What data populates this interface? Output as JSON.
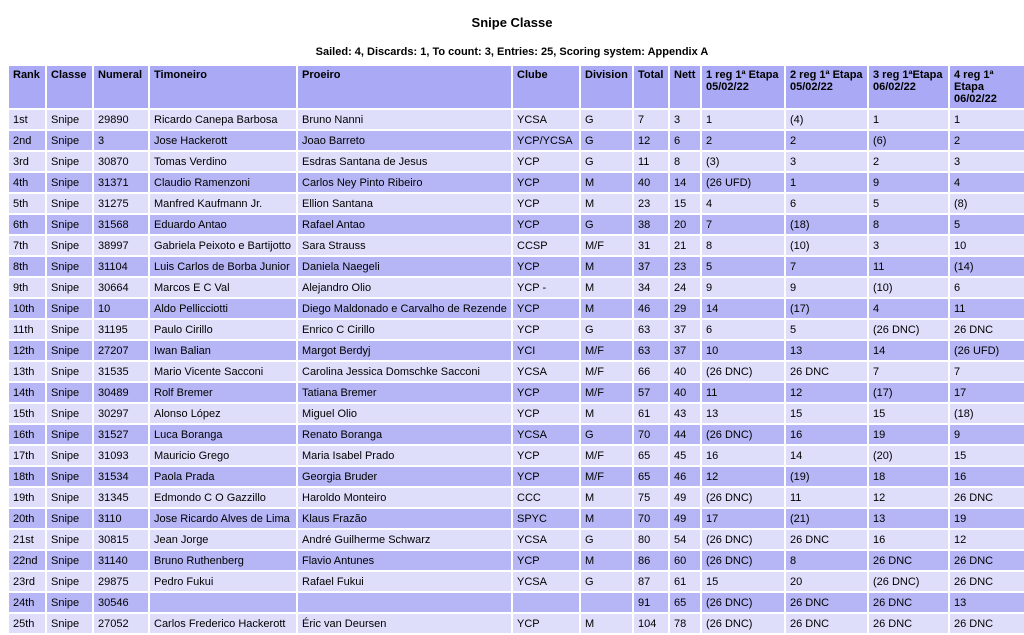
{
  "title": "Snipe Classe",
  "summary": "Sailed: 4, Discards: 1, To count: 3, Entries: 25, Scoring system: Appendix A",
  "colors": {
    "header": "#a9a9f5",
    "row_light": "#dedefb",
    "row_dark": "#b6b6f6"
  },
  "columns": [
    "Rank",
    "Classe",
    "Numeral",
    "Timoneiro",
    "Proeiro",
    "Clube",
    "Division",
    "Total",
    "Nett",
    "1 reg 1ª Etapa 05/02/22",
    "2 reg 1ª Etapa 05/02/22",
    "3 reg 1ªEtapa 06/02/22",
    "4 reg 1ª Etapa 06/02/22"
  ],
  "rows": [
    [
      "1st",
      "Snipe",
      "29890",
      "Ricardo Canepa Barbosa",
      "Bruno Nanni",
      "YCSA",
      "G",
      "7",
      "3",
      "1",
      "(4)",
      "1",
      "1"
    ],
    [
      "2nd",
      "Snipe",
      "3",
      "Jose Hackerott",
      "Joao Barreto",
      "YCP/YCSA",
      "G",
      "12",
      "6",
      "2",
      "2",
      "(6)",
      "2"
    ],
    [
      "3rd",
      "Snipe",
      "30870",
      "Tomas Verdino",
      "Esdras Santana de Jesus",
      "YCP",
      "G",
      "11",
      "8",
      "(3)",
      "3",
      "2",
      "3"
    ],
    [
      "4th",
      "Snipe",
      "31371",
      "Claudio Ramenzoni",
      "Carlos Ney Pinto Ribeiro",
      "YCP",
      "M",
      "40",
      "14",
      "(26 UFD)",
      "1",
      "9",
      "4"
    ],
    [
      "5th",
      "Snipe",
      "31275",
      "Manfred Kaufmann Jr.",
      "Ellion Santana",
      "YCP",
      "M",
      "23",
      "15",
      "4",
      "6",
      "5",
      "(8)"
    ],
    [
      "6th",
      "Snipe",
      "31568",
      "Eduardo Antao",
      "Rafael Antao",
      "YCP",
      "G",
      "38",
      "20",
      "7",
      "(18)",
      "8",
      "5"
    ],
    [
      "7th",
      "Snipe",
      "38997",
      "Gabriela Peixoto e Bartijotto",
      "Sara Strauss",
      "CCSP",
      "M/F",
      "31",
      "21",
      "8",
      "(10)",
      "3",
      "10"
    ],
    [
      "8th",
      "Snipe",
      "31104",
      "Luis Carlos de Borba Junior",
      "Daniela Naegeli",
      "YCP",
      "M",
      "37",
      "23",
      "5",
      "7",
      "11",
      "(14)"
    ],
    [
      "9th",
      "Snipe",
      "30664",
      "Marcos E C Val",
      "Alejandro Olio",
      "YCP -",
      "M",
      "34",
      "24",
      "9",
      "9",
      "(10)",
      "6"
    ],
    [
      "10th",
      "Snipe",
      "10",
      "Aldo Pellicciotti",
      "Diego Maldonado e Carvalho de Rezende",
      "YCP",
      "M",
      "46",
      "29",
      "14",
      "(17)",
      "4",
      "11"
    ],
    [
      "11th",
      "Snipe",
      "31195",
      "Paulo Cirillo",
      "Enrico C Cirillo",
      "YCP",
      "G",
      "63",
      "37",
      "6",
      "5",
      "(26 DNC)",
      "26 DNC"
    ],
    [
      "12th",
      "Snipe",
      "27207",
      "Iwan Balian",
      "Margot Berdyj",
      "YCI",
      "M/F",
      "63",
      "37",
      "10",
      "13",
      "14",
      "(26 UFD)"
    ],
    [
      "13th",
      "Snipe",
      "31535",
      "Mario Vicente Sacconi",
      "Carolina Jessica Domschke Sacconi",
      "YCSA",
      "M/F",
      "66",
      "40",
      "(26 DNC)",
      "26 DNC",
      "7",
      "7"
    ],
    [
      "14th",
      "Snipe",
      "30489",
      "Rolf Bremer",
      "Tatiana Bremer",
      "YCP",
      "M/F",
      "57",
      "40",
      "11",
      "12",
      "(17)",
      "17"
    ],
    [
      "15th",
      "Snipe",
      "30297",
      "Alonso López",
      "Miguel Olio",
      "YCP",
      "M",
      "61",
      "43",
      "13",
      "15",
      "15",
      "(18)"
    ],
    [
      "16th",
      "Snipe",
      "31527",
      "Luca Boranga",
      "Renato Boranga",
      "YCSA",
      "G",
      "70",
      "44",
      "(26 DNC)",
      "16",
      "19",
      "9"
    ],
    [
      "17th",
      "Snipe",
      "31093",
      "Mauricio Grego",
      "Maria Isabel Prado",
      "YCP",
      "M/F",
      "65",
      "45",
      "16",
      "14",
      "(20)",
      "15"
    ],
    [
      "18th",
      "Snipe",
      "31534",
      "Paola Prada",
      "Georgia Bruder",
      "YCP",
      "M/F",
      "65",
      "46",
      "12",
      "(19)",
      "18",
      "16"
    ],
    [
      "19th",
      "Snipe",
      "31345",
      "Edmondo C O Gazzillo",
      "Haroldo Monteiro",
      "CCC",
      "M",
      "75",
      "49",
      "(26 DNC)",
      "11",
      "12",
      "26 DNC"
    ],
    [
      "20th",
      "Snipe",
      "3110",
      "Jose Ricardo Alves de Lima",
      "Klaus Frazão",
      "SPYC",
      "M",
      "70",
      "49",
      "17",
      "(21)",
      "13",
      "19"
    ],
    [
      "21st",
      "Snipe",
      "30815",
      "Jean Jorge",
      "André Guilherme Schwarz",
      "YCSA",
      "G",
      "80",
      "54",
      "(26 DNC)",
      "26 DNC",
      "16",
      "12"
    ],
    [
      "22nd",
      "Snipe",
      "31140",
      "Bruno Ruthenberg",
      "Flavio Antunes",
      "YCP",
      "M",
      "86",
      "60",
      "(26 DNC)",
      "8",
      "26 DNC",
      "26 DNC"
    ],
    [
      "23rd",
      "Snipe",
      "29875",
      "Pedro Fukui",
      "Rafael Fukui",
      "YCSA",
      "G",
      "87",
      "61",
      "15",
      "20",
      "(26 DNC)",
      "26 DNC"
    ],
    [
      "24th",
      "Snipe",
      "30546",
      "",
      "",
      "",
      "",
      "91",
      "65",
      "(26 DNC)",
      "26 DNC",
      "26 DNC",
      "13"
    ],
    [
      "25th",
      "Snipe",
      "27052",
      "Carlos Frederico Hackerott",
      "Éric van Deursen",
      "YCP",
      "M",
      "104",
      "78",
      "(26 DNC)",
      "26 DNC",
      "26 DNC",
      "26 DNC"
    ]
  ]
}
